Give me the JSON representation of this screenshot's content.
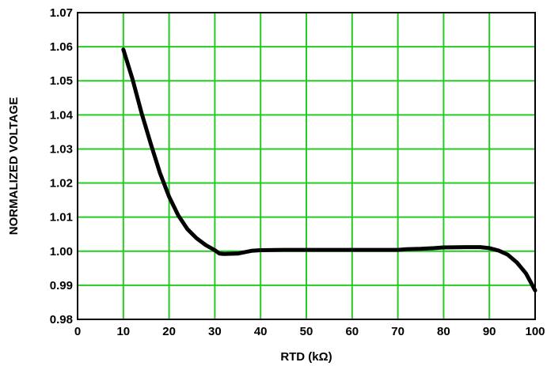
{
  "chart_data": {
    "type": "line",
    "title": "",
    "xlabel": "RTD (kΩ)",
    "ylabel": "NORMALIZED VOLTAGE",
    "xlim": [
      0,
      100
    ],
    "ylim": [
      0.98,
      1.07
    ],
    "xticks": [
      "0",
      "10",
      "20",
      "30",
      "40",
      "50",
      "60",
      "70",
      "80",
      "90",
      "100"
    ],
    "yticks": [
      "1.07",
      "1.06",
      "1.05",
      "1.04",
      "1.03",
      "1.02",
      "1.01",
      "1.00",
      "0.99",
      "0.98"
    ],
    "grid": true,
    "grid_color": "#22cc22",
    "line_color": "#000000",
    "series": [
      {
        "x": [
          10,
          12,
          14,
          16,
          18,
          20,
          22,
          24,
          26,
          28,
          30,
          31,
          32,
          35,
          38,
          40,
          45,
          50,
          55,
          60,
          65,
          70,
          72,
          75,
          78,
          80,
          85,
          88,
          90,
          92,
          94,
          96,
          98,
          100
        ],
        "values": [
          1.0592,
          1.0505,
          1.0405,
          1.0315,
          1.023,
          1.016,
          1.0105,
          1.0065,
          1.0038,
          1.0018,
          1.0003,
          0.9993,
          0.9992,
          0.9993,
          1.0001,
          1.0003,
          1.0004,
          1.0004,
          1.0004,
          1.0004,
          1.0004,
          1.0004,
          1.0006,
          1.0007,
          1.0009,
          1.0011,
          1.0012,
          1.0012,
          1.0009,
          1.0002,
          0.999,
          0.9967,
          0.9935,
          0.9885
        ]
      }
    ]
  }
}
